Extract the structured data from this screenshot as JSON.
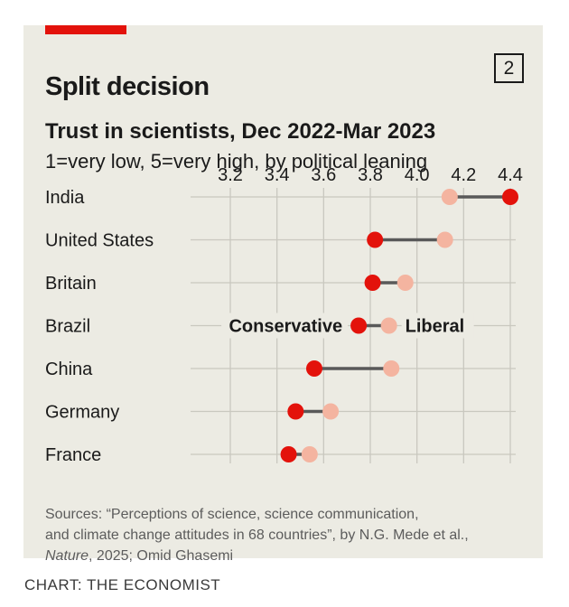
{
  "header": {
    "title": "Split decision",
    "chart_number": "2",
    "subtitle": "Trust in scientists, Dec 2022-Mar 2023",
    "scale_note": "1=very low, 5=very high, by political leaning"
  },
  "source": {
    "line1": "Sources: “Perceptions of science, science communication,",
    "line2": "and climate change attitudes in 68 countries”, by N.G. Mede et al.,",
    "journal": "Nature",
    "line3_rest": ", 2025; Omid Ghasemi"
  },
  "credit": "CHART: THE ECONOMIST",
  "colors": {
    "background": "#ecebe3",
    "conservative": "#e3120b",
    "liberal": "#f4b4a0",
    "connector": "#595959",
    "grid": "#c9c8bf",
    "accent": "#e3120b"
  },
  "chart_data": {
    "type": "dot-plot",
    "title": "Trust in scientists, Dec 2022-Mar 2023",
    "subtitle": "1=very low, 5=very high, by political leaning",
    "xlim": [
      3.2,
      4.4
    ],
    "x_ticks": [
      "3.2",
      "3.4",
      "3.6",
      "3.8",
      "4.0",
      "4.2",
      "4.4"
    ],
    "x_tick_values": [
      3.2,
      3.4,
      3.6,
      3.8,
      4.0,
      4.2,
      4.4
    ],
    "categories": [
      "India",
      "United States",
      "Britain",
      "Brazil",
      "China",
      "Germany",
      "France"
    ],
    "series": [
      {
        "name": "Conservative",
        "values": [
          4.4,
          3.82,
          3.81,
          3.75,
          3.56,
          3.48,
          3.45
        ]
      },
      {
        "name": "Liberal",
        "values": [
          4.14,
          4.12,
          3.95,
          3.88,
          3.89,
          3.63,
          3.54
        ]
      }
    ],
    "annotations": [
      {
        "text": "Conservative",
        "category": "Brazil",
        "series": "Conservative"
      },
      {
        "text": "Liberal",
        "category": "Brazil",
        "series": "Liberal"
      }
    ]
  }
}
